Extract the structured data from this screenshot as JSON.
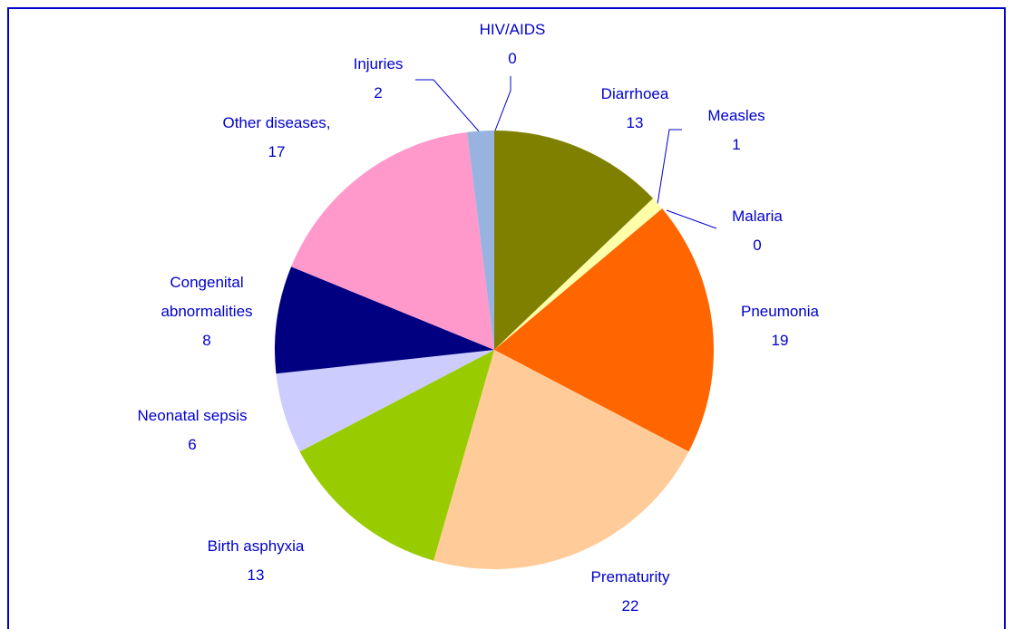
{
  "chart_data": {
    "type": "pie",
    "categories": [
      "Diarrhoea",
      "Measles",
      "Malaria",
      "Pneumonia",
      "Prematurity",
      "Birth asphyxia",
      "Neonatal sepsis",
      "Congenital abnormalities",
      "Other diseases,",
      "Injuries",
      "HIV/AIDS"
    ],
    "values": [
      13,
      1,
      0,
      19,
      22,
      13,
      6,
      8,
      17,
      2,
      0
    ],
    "colors": [
      "#808000",
      "#ffffaa",
      "#ff9900",
      "#ff6600",
      "#ffcc99",
      "#99cc00",
      "#ccccff",
      "#000080",
      "#ff99cc",
      "#99b3e0",
      "#3366ff"
    ]
  }
}
